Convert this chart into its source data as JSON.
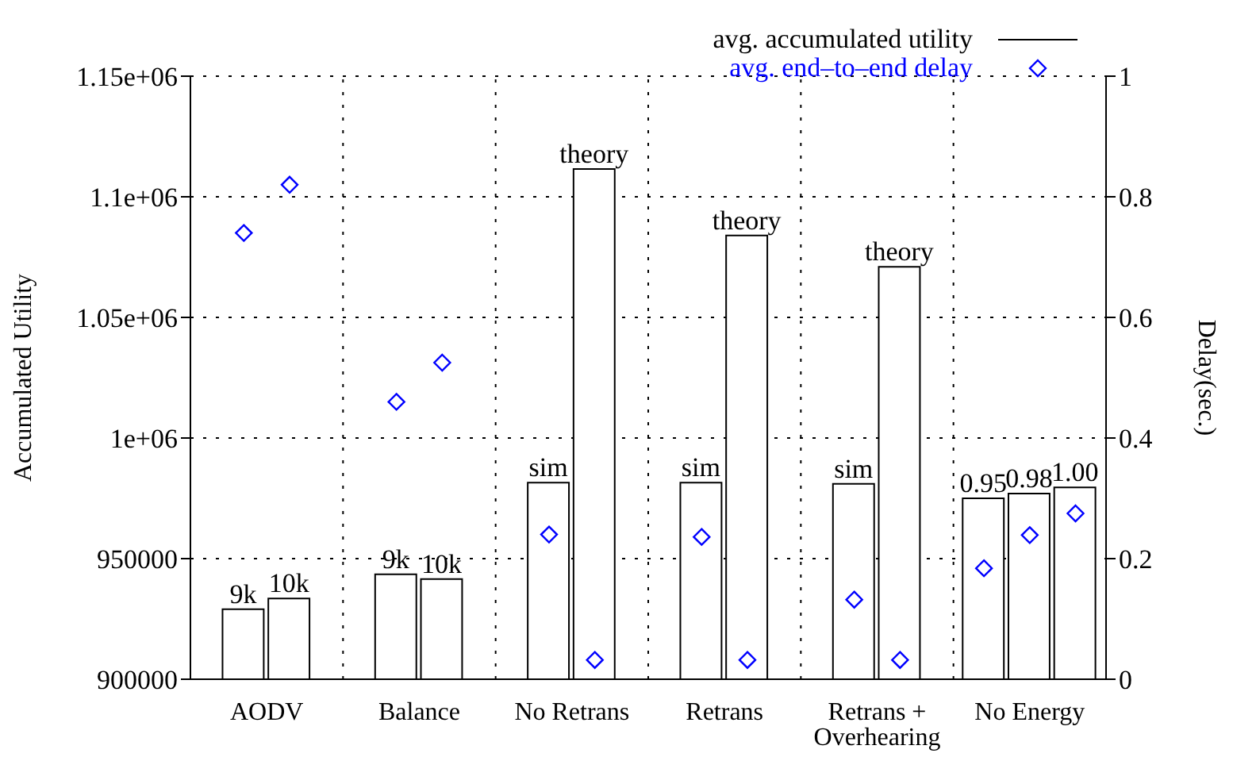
{
  "chart_data": {
    "type": "bar",
    "categories": [
      "AODV",
      "Balance",
      "No Retrans",
      "Retrans",
      "Retrans + Overhearing",
      "No Energy"
    ],
    "ylabel": "Accumulated Utility",
    "y2label": "Delay(sec.)",
    "series": [
      {
        "type": "bar",
        "name": "avg. accumulated utility",
        "color": "#000000",
        "values": [
          929000,
          943500,
          981500,
          981500,
          981000,
          975000
        ]
      },
      {
        "type": "bar",
        "color": "#000000",
        "values": [
          933500,
          941500,
          1111500,
          1084000,
          1071000,
          977000
        ]
      },
      {
        "type": "bar",
        "color": "#000000",
        "values": [
          null,
          null,
          null,
          null,
          null,
          979500
        ]
      },
      {
        "type": "scatter",
        "axis": "y2",
        "name": "avg. end–to–end delay",
        "color": "#0000ff",
        "values": [
          0.74,
          0.46,
          0.24,
          0.236,
          0.132,
          0.184
        ]
      },
      {
        "type": "scatter",
        "axis": "y2",
        "color": "#0000ff",
        "values": [
          0.82,
          0.525,
          0.032,
          0.032,
          0.032,
          0.239
        ]
      },
      {
        "type": "scatter",
        "axis": "y2",
        "color": "#0000ff",
        "values": [
          null,
          null,
          null,
          null,
          null,
          0.275
        ]
      }
    ],
    "ylim": [
      900000,
      1150000
    ],
    "yticks": [
      900000,
      950000,
      {
        "value": 1000000,
        "label": "1e+06"
      },
      {
        "value": 1050000,
        "label": "1.05e+06"
      },
      {
        "value": 1100000,
        "label": "1.1e+06"
      },
      {
        "value": 1150000,
        "label": "1.15e+06"
      }
    ],
    "y2lim": [
      0,
      1
    ],
    "y2ticks": [
      0,
      0.2,
      0.4,
      0.6,
      0.8,
      1
    ],
    "annotations": [
      {
        "text": "9k",
        "x": "AODV",
        "y": 929000
      },
      {
        "text": "10k",
        "x": "AODV",
        "y": 933500
      },
      {
        "text": "9k",
        "x": "Balance",
        "y": 943500
      },
      {
        "text": "10k",
        "x": "Balance",
        "y": 941500
      },
      {
        "text": "sim",
        "x": "No Retrans",
        "y": 981500
      },
      {
        "text": "theory",
        "x": "No Retrans",
        "y": 1111500
      },
      {
        "text": "sim",
        "x": "Retrans",
        "y": 981500
      },
      {
        "text": "theory",
        "x": "Retrans",
        "y": 1084000
      },
      {
        "text": "sim",
        "x": "Retrans + Overhearing",
        "y": 981000
      },
      {
        "text": "theory",
        "x": "Retrans + Overhearing",
        "y": 1071000
      },
      {
        "text": "0.95",
        "x": "No Energy",
        "y": 975000
      },
      {
        "text": "0.98",
        "x": "No Energy",
        "y": 977000
      },
      {
        "text": "1.00",
        "x": "No Energy",
        "y": 979500
      }
    ],
    "grid": true,
    "legend": "top right",
    "marker": "diamond"
  }
}
